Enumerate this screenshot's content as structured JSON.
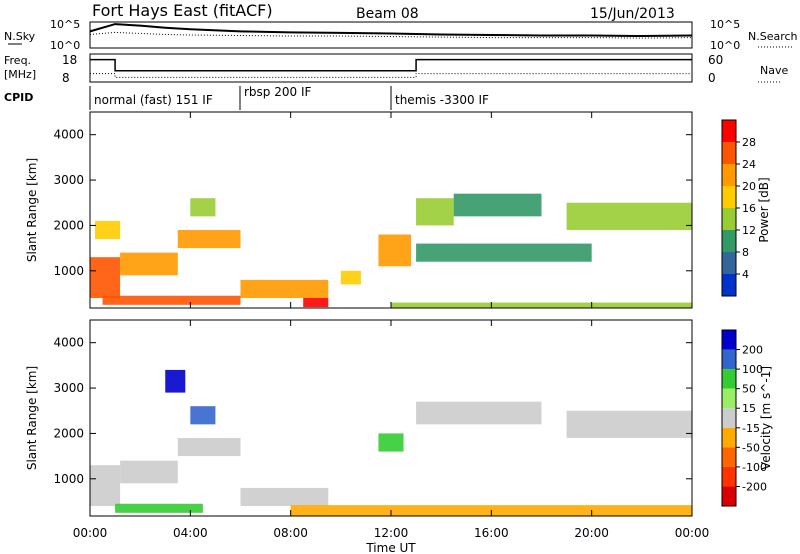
{
  "header": {
    "title": "Fort Hays East (fitACF)",
    "beam": "Beam 08",
    "date": "15/Jun/2013"
  },
  "top_panels": {
    "nsky_label": "N.Sky",
    "nsky_ticks": [
      "10^5",
      "10^0"
    ],
    "nsearch_label": "N.Search",
    "nsearch_ticks": [
      "10^5",
      "10^0"
    ],
    "freq_label_1": "Freq.",
    "freq_label_2": "[MHz]",
    "freq_ticks": [
      "18",
      "8"
    ],
    "nave_label": "Nave",
    "nave_ticks": [
      "60",
      "0"
    ],
    "cpid_label": "CPID",
    "cpid_segments": [
      {
        "label": "normal (fast) 151 IF",
        "start_hour": 0
      },
      {
        "label": "rbsp 200 IF",
        "start_hour": 6
      },
      {
        "label": "themis -3300 IF",
        "start_hour": 12
      }
    ]
  },
  "axes": {
    "xlabel": "Time UT",
    "x_ticks": [
      "00:00",
      "04:00",
      "08:00",
      "12:00",
      "16:00",
      "20:00",
      "00:00"
    ],
    "ylabel": "Slant Range [km]",
    "y_ticks": [
      "4000",
      "3000",
      "2000",
      "1000"
    ]
  },
  "power_scale": {
    "label": "Power [dB]",
    "ticks": [
      "28",
      "24",
      "20",
      "16",
      "12",
      "8",
      "4"
    ],
    "colors": [
      "#ff0000",
      "#ff5500",
      "#ff9900",
      "#ffcc00",
      "#99cc33",
      "#339966",
      "#336699",
      "#0033cc"
    ]
  },
  "velocity_scale": {
    "label": "Velocity [m s^-1]",
    "ticks": [
      "200",
      "100",
      "50",
      "15",
      "-15",
      "-50",
      "-100",
      "-200"
    ],
    "colors": [
      "#0000cc",
      "#3366cc",
      "#33cc33",
      "#99ee66",
      "#cccccc",
      "#ffaa00",
      "#ff6600",
      "#ff3300",
      "#dd0000"
    ]
  },
  "chart_data": [
    {
      "type": "line",
      "title": "N.Sky / N.Search",
      "x_unit": "hours UT",
      "x": [
        0,
        1,
        2,
        3,
        4,
        6,
        8,
        10,
        12,
        14,
        16,
        18,
        20,
        22,
        24
      ],
      "series": [
        {
          "name": "N.Sky",
          "values": [
            3.2,
            4.6,
            4.3,
            3.9,
            3.6,
            3.2,
            3.0,
            2.9,
            2.8,
            2.6,
            2.5,
            2.4,
            2.4,
            2.3,
            2.4
          ]
        },
        {
          "name": "N.Search",
          "values": [
            2.6,
            3.0,
            2.8,
            2.6,
            2.5,
            2.4,
            2.3,
            2.3,
            2.2,
            2.1,
            2.0,
            2.0,
            2.0,
            1.9,
            2.0
          ]
        }
      ],
      "scale": "log",
      "ylim": [
        "10^0",
        "10^5"
      ]
    },
    {
      "type": "line",
      "title": "Freq. / Nave",
      "x_unit": "hours UT",
      "series": [
        {
          "name": "Freq.",
          "x": [
            0,
            1,
            1,
            13,
            13,
            24
          ],
          "values": [
            16,
            16,
            12,
            12,
            16,
            16
          ],
          "ylim": [
            8,
            18
          ]
        },
        {
          "name": "Nave",
          "x": [
            0,
            1,
            1,
            13,
            13,
            24
          ],
          "values": [
            18,
            18,
            10,
            10,
            18,
            18
          ],
          "ylim": [
            0,
            60
          ]
        }
      ]
    },
    {
      "type": "heatmap",
      "title": "Power [dB]",
      "x_unit": "hours UT",
      "y_unit": "km",
      "ylim": [
        180,
        4500
      ],
      "cells": [
        {
          "t0": 0.0,
          "t1": 1.2,
          "r0": 400,
          "r1": 1300,
          "v": 24
        },
        {
          "t0": 0.2,
          "t1": 1.2,
          "r0": 1700,
          "r1": 2100,
          "v": 16
        },
        {
          "t0": 1.2,
          "t1": 3.5,
          "r0": 900,
          "r1": 1400,
          "v": 18
        },
        {
          "t0": 3.5,
          "t1": 6.0,
          "r0": 1500,
          "r1": 1900,
          "v": 18
        },
        {
          "t0": 0.5,
          "t1": 6.0,
          "r0": 250,
          "r1": 450,
          "v": 22
        },
        {
          "t0": 4.0,
          "t1": 5.0,
          "r0": 2200,
          "r1": 2600,
          "v": 10
        },
        {
          "t0": 6.0,
          "t1": 9.5,
          "r0": 400,
          "r1": 800,
          "v": 20
        },
        {
          "t0": 8.5,
          "t1": 9.5,
          "r0": 200,
          "r1": 400,
          "v": 26
        },
        {
          "t0": 10.0,
          "t1": 10.8,
          "r0": 700,
          "r1": 1000,
          "v": 16
        },
        {
          "t0": 11.5,
          "t1": 12.8,
          "r0": 1100,
          "r1": 1800,
          "v": 20
        },
        {
          "t0": 13.0,
          "t1": 14.5,
          "r0": 2000,
          "r1": 2600,
          "v": 12
        },
        {
          "t0": 14.5,
          "t1": 18.0,
          "r0": 2200,
          "r1": 2700,
          "v": 8
        },
        {
          "t0": 19.0,
          "t1": 24.0,
          "r0": 1900,
          "r1": 2500,
          "v": 12
        },
        {
          "t0": 13.0,
          "t1": 20.0,
          "r0": 1200,
          "r1": 1600,
          "v": 6
        },
        {
          "t0": 12.0,
          "t1": 24.0,
          "r0": 180,
          "r1": 300,
          "v": 10
        }
      ]
    },
    {
      "type": "heatmap",
      "title": "Velocity [m s^-1]",
      "x_unit": "hours UT",
      "y_unit": "km",
      "ylim": [
        180,
        4500
      ],
      "cells": [
        {
          "t0": 0.0,
          "t1": 1.2,
          "r0": 400,
          "r1": 1300,
          "v": -5
        },
        {
          "t0": 1.2,
          "t1": 3.5,
          "r0": 900,
          "r1": 1400,
          "v": -5
        },
        {
          "t0": 3.5,
          "t1": 6.0,
          "r0": 1500,
          "r1": 1900,
          "v": -5
        },
        {
          "t0": 1.0,
          "t1": 4.5,
          "r0": 250,
          "r1": 450,
          "v": 40
        },
        {
          "t0": 3.0,
          "t1": 3.8,
          "r0": 2900,
          "r1": 3400,
          "v": 200
        },
        {
          "t0": 4.0,
          "t1": 5.0,
          "r0": 2200,
          "r1": 2600,
          "v": 100
        },
        {
          "t0": 6.0,
          "t1": 9.5,
          "r0": 400,
          "r1": 800,
          "v": -5
        },
        {
          "t0": 11.5,
          "t1": 12.5,
          "r0": 1600,
          "r1": 2000,
          "v": 30
        },
        {
          "t0": 13.0,
          "t1": 18.0,
          "r0": 2200,
          "r1": 2700,
          "v": -5
        },
        {
          "t0": 19.0,
          "t1": 24.0,
          "r0": 1900,
          "r1": 2500,
          "v": -5
        },
        {
          "t0": 8.0,
          "t1": 24.0,
          "r0": 180,
          "r1": 420,
          "v": -50
        }
      ]
    }
  ]
}
